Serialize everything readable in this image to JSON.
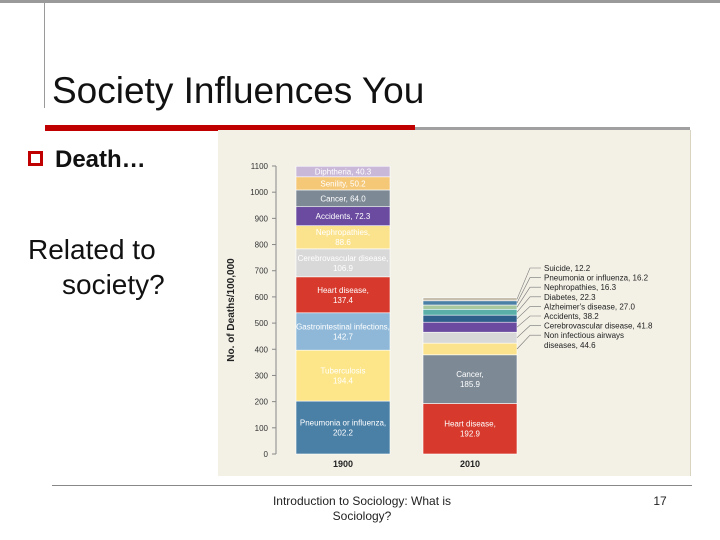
{
  "slide": {
    "title": "Society Influences You",
    "bullet": "Death…",
    "body_line1": "Related to",
    "body_line2": "society?",
    "footer_line1": "Introduction to Sociology: What is",
    "footer_line2": "Sociology?",
    "page_number": "17"
  },
  "colors": {
    "accent_red": "#c00000"
  },
  "chart_data": {
    "type": "bar",
    "stacked": true,
    "ylabel": "No. of Deaths/100,000",
    "ylim": [
      0,
      1100
    ],
    "yticks": [
      0,
      100,
      200,
      300,
      400,
      500,
      600,
      700,
      800,
      900,
      1000,
      1100
    ],
    "tick_labels": [
      "0",
      "100",
      "200",
      "300",
      "400",
      "500",
      "600",
      "700",
      "800",
      "900",
      "1000",
      "1100"
    ],
    "categories": [
      "1900",
      "2010"
    ],
    "bars": [
      {
        "year": "1900",
        "segments": [
          {
            "label": "Pneumonia or influenza,",
            "value_text": "202.2",
            "value": 202.2,
            "color": "#4a7fa6"
          },
          {
            "label": "Tuberculosis",
            "value_text": "194.4",
            "value": 194.4,
            "color": "#fde68a"
          },
          {
            "label": "Gastrointestinal infections,",
            "value_text": "142.7",
            "value": 142.7,
            "color": "#8fb8d8"
          },
          {
            "label": "Heart disease,",
            "value_text": "137.4",
            "value": 137.4,
            "color": "#d73a2c"
          },
          {
            "label": "Cerebrovascular disease,",
            "value_text": "106.9",
            "value": 106.9,
            "color": "#d8d8d8"
          },
          {
            "label": "Nephropathies,",
            "value_text": "88.6",
            "value": 88.6,
            "color": "#fbe38e"
          },
          {
            "label": "Accidents,",
            "value_text": "72.3",
            "value": 72.3,
            "color": "#6a4ba0"
          },
          {
            "label": "Cancer,",
            "value_text": "64.0",
            "value": 64.0,
            "color": "#7d8a96"
          },
          {
            "label": "Senility,",
            "value_text": "50.2",
            "value": 50.2,
            "color": "#f5c878"
          },
          {
            "label": "Diphtheria,",
            "value_text": "40.3",
            "value": 40.3,
            "color": "#c9b8d8"
          }
        ]
      },
      {
        "year": "2010",
        "segments": [
          {
            "label": "Heart disease,",
            "value_text": "192.9",
            "value": 192.9,
            "color": "#d73a2c"
          },
          {
            "label": "Cancer,",
            "value_text": "185.9",
            "value": 185.9,
            "color": "#7d8a96"
          },
          {
            "label": "Non infectious airways diseases,",
            "value_text": "44.6",
            "value": 44.6,
            "color": "#fbe38e"
          },
          {
            "label": "Cerebrovascular disease,",
            "value_text": "41.8",
            "value": 41.8,
            "color": "#d8d8d8"
          },
          {
            "label": "Accidents,",
            "value_text": "38.2",
            "value": 38.2,
            "color": "#6a4ba0"
          },
          {
            "label": "Alzheimer's disease,",
            "value_text": "27.0",
            "value": 27.0,
            "color": "#2d5f8a"
          },
          {
            "label": "Diabetes,",
            "value_text": "22.3",
            "value": 22.3,
            "color": "#5ab0a8"
          },
          {
            "label": "Nephropathies,",
            "value_text": "16.3",
            "value": 16.3,
            "color": "#a8c8a0"
          },
          {
            "label": "Pneumonia or influenza,",
            "value_text": "16.2",
            "value": 16.2,
            "color": "#4a7fa6"
          },
          {
            "label": "Suicide,",
            "value_text": "12.2",
            "value": 12.2,
            "color": "#c7bfae"
          }
        ]
      }
    ],
    "grid": false,
    "legend": "callouts-right"
  }
}
